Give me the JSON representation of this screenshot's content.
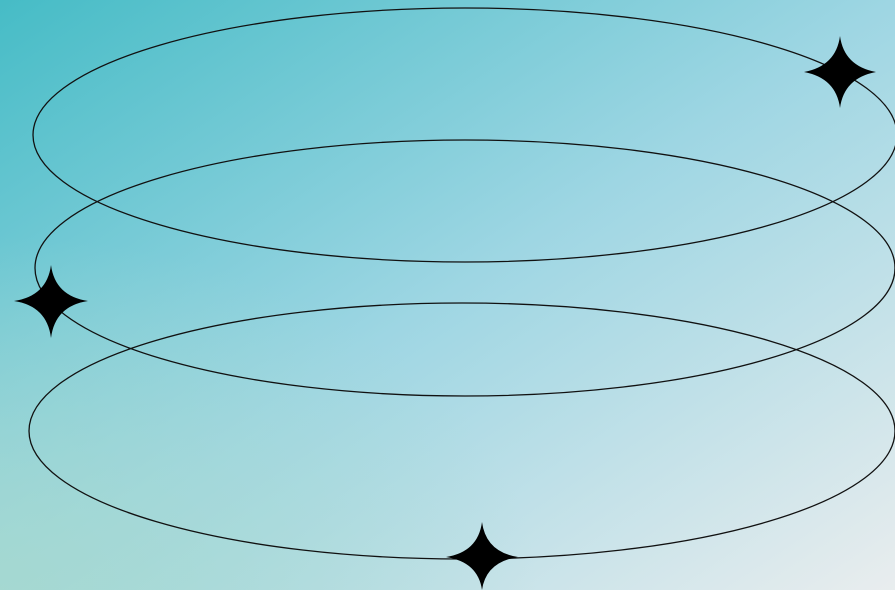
{
  "colors": {
    "gradient_top_left": "#46BCC6",
    "gradient_mid": "#9ED6E3",
    "gradient_bottom_right": "#E9EDEE",
    "gradient_bottom_left_tint": "#A6D9CE",
    "stroke": "#111111",
    "sparkle": "#000000"
  },
  "icons": [
    "ellipse-ring",
    "four-point-star-icon"
  ]
}
